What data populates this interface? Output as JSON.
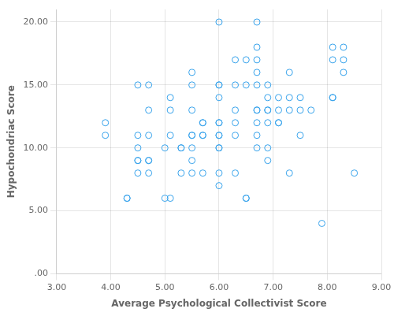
{
  "chart_data": {
    "type": "scatter",
    "x": [
      3.9,
      3.9,
      4.3,
      4.3,
      4.5,
      4.5,
      4.5,
      4.5,
      4.5,
      4.5,
      4.7,
      4.7,
      4.7,
      4.7,
      4.7,
      4.7,
      5.0,
      5.0,
      5.1,
      5.1,
      5.1,
      5.1,
      5.3,
      5.3,
      5.3,
      5.5,
      5.5,
      5.5,
      5.5,
      5.5,
      5.5,
      5.5,
      5.5,
      5.7,
      5.7,
      5.7,
      5.7,
      5.7,
      6.0,
      6.0,
      6.0,
      6.0,
      6.0,
      6.0,
      6.0,
      6.0,
      6.0,
      6.0,
      6.0,
      6.0,
      6.3,
      6.3,
      6.3,
      6.3,
      6.3,
      6.3,
      6.5,
      6.5,
      6.5,
      6.5,
      6.7,
      6.7,
      6.7,
      6.7,
      6.7,
      6.7,
      6.7,
      6.7,
      6.7,
      6.7,
      6.9,
      6.9,
      6.9,
      6.9,
      6.9,
      6.9,
      6.9,
      7.1,
      7.1,
      7.1,
      7.1,
      7.3,
      7.3,
      7.3,
      7.3,
      7.5,
      7.5,
      7.5,
      7.7,
      7.9,
      8.1,
      8.1,
      8.1,
      8.1,
      8.3,
      8.3,
      8.3,
      8.5
    ],
    "values": [
      12.0,
      11.0,
      6.0,
      6.0,
      15.0,
      11.0,
      9.0,
      9.0,
      8.0,
      10.0,
      15.0,
      13.0,
      11.0,
      9.0,
      9.0,
      8.0,
      10.0,
      6.0,
      14.0,
      13.0,
      11.0,
      6.0,
      10.0,
      10.0,
      8.0,
      16.0,
      15.0,
      13.0,
      11.0,
      11.0,
      10.0,
      9.0,
      8.0,
      12.0,
      12.0,
      11.0,
      11.0,
      8.0,
      20.0,
      15.0,
      15.0,
      14.0,
      12.0,
      12.0,
      11.0,
      11.0,
      10.0,
      10.0,
      8.0,
      7.0,
      17.0,
      15.0,
      13.0,
      12.0,
      11.0,
      8.0,
      17.0,
      15.0,
      6.0,
      6.0,
      20.0,
      18.0,
      17.0,
      16.0,
      15.0,
      13.0,
      13.0,
      12.0,
      11.0,
      10.0,
      15.0,
      14.0,
      13.0,
      13.0,
      12.0,
      10.0,
      9.0,
      14.0,
      13.0,
      12.0,
      12.0,
      16.0,
      14.0,
      13.0,
      8.0,
      14.0,
      13.0,
      11.0,
      13.0,
      4.0,
      18.0,
      17.0,
      14.0,
      14.0,
      18.0,
      17.0,
      16.0,
      8.0
    ],
    "x_label": "Average Psychological Collectivist Score",
    "y_label": "Hypochondriac Score",
    "xlim": [
      3.0,
      9.0
    ],
    "ylim": [
      0.0,
      21.0
    ],
    "xticks": [
      {
        "value": 3.0,
        "label": "3.00"
      },
      {
        "value": 4.0,
        "label": "4.00"
      },
      {
        "value": 5.0,
        "label": "5.00"
      },
      {
        "value": 6.0,
        "label": "6.00"
      },
      {
        "value": 7.0,
        "label": "7.00"
      },
      {
        "value": 8.0,
        "label": "8.00"
      },
      {
        "value": 9.0,
        "label": "9.00"
      }
    ],
    "yticks": [
      {
        "value": 0.0,
        "label": ".00"
      },
      {
        "value": 5.0,
        "label": "5.00"
      },
      {
        "value": 10.0,
        "label": "10.00"
      },
      {
        "value": 15.0,
        "label": "15.00"
      },
      {
        "value": 20.0,
        "label": "20.00"
      }
    ],
    "marker": "circle",
    "grid": true
  }
}
